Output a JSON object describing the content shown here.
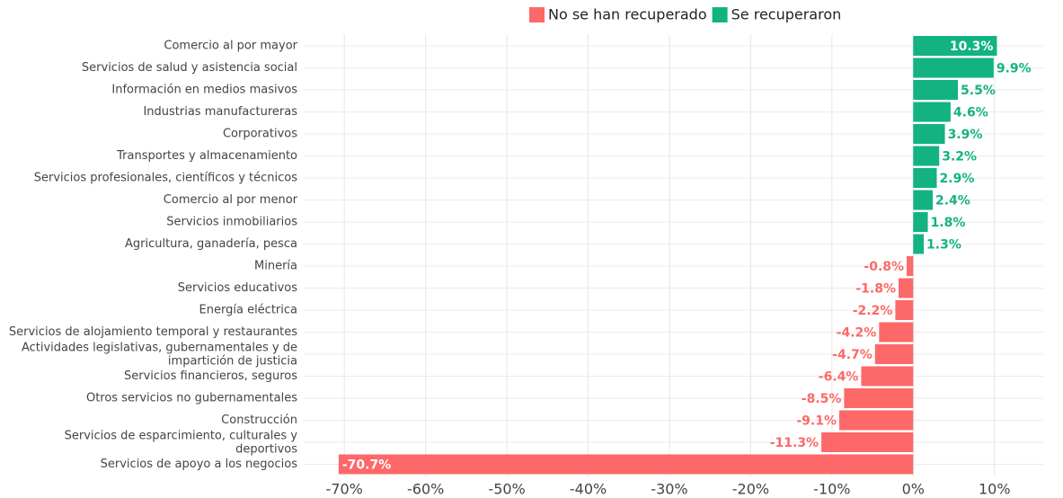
{
  "chart_data": {
    "type": "bar",
    "orientation": "horizontal",
    "categories": [
      "Comercio al por mayor",
      "Servicios de salud y asistencia social",
      "Información en medios masivos",
      "Industrias manufactureras",
      "Corporativos",
      "Transportes y almacenamiento",
      "Servicios profesionales, científicos y técnicos",
      "Comercio al por menor",
      "Servicios inmobiliarios",
      "Agricultura, ganadería, pesca",
      "Minería",
      "Servicios educativos",
      "Energía eléctrica",
      "Servicios de alojamiento temporal y restaurantes",
      "Actividades legislativas, gubernamentales y de\nimpartición de justicia",
      "Servicios financieros, seguros",
      "Otros servicios no gubernamentales",
      "Construcción",
      "Servicios de esparcimiento, culturales y\ndeportivos",
      "Servicios de apoyo a los negocios"
    ],
    "series": [
      {
        "name": "No se han recuperado",
        "color": "#fd6868",
        "values": [
          null,
          null,
          null,
          null,
          null,
          null,
          null,
          null,
          null,
          null,
          -0.8,
          -1.8,
          -2.2,
          -4.2,
          -4.7,
          -6.4,
          -8.5,
          -9.1,
          -11.3,
          -70.7
        ],
        "value_labels": [
          null,
          null,
          null,
          null,
          null,
          null,
          null,
          null,
          null,
          null,
          "-0.8%",
          "-1.8%",
          "-2.2%",
          "-4.2%",
          "-4.7%",
          "-6.4%",
          "-8.5%",
          "-9.1%",
          "-11.3%",
          "-70.7%"
        ]
      },
      {
        "name": "Se recuperaron",
        "color": "#12b381",
        "values": [
          10.3,
          9.9,
          5.5,
          4.6,
          3.9,
          3.2,
          2.9,
          2.4,
          1.8,
          1.3,
          null,
          null,
          null,
          null,
          null,
          null,
          null,
          null,
          null,
          null
        ],
        "value_labels": [
          "10.3%",
          "9.9%",
          "5.5%",
          "4.6%",
          "3.9%",
          "3.2%",
          "2.9%",
          "2.4%",
          "1.8%",
          "1.3%",
          null,
          null,
          null,
          null,
          null,
          null,
          null,
          null,
          null,
          null
        ]
      }
    ],
    "xlim": [
      -75,
      16
    ],
    "xticks": [
      {
        "value": -70,
        "label": "-70%"
      },
      {
        "value": -60,
        "label": "-60%"
      },
      {
        "value": -50,
        "label": "-50%"
      },
      {
        "value": -40,
        "label": "-40%"
      },
      {
        "value": -30,
        "label": "-30%"
      },
      {
        "value": -20,
        "label": "-20%"
      },
      {
        "value": -10,
        "label": "-10%"
      },
      {
        "value": 0,
        "label": "0%"
      },
      {
        "value": 10,
        "label": "10%"
      }
    ],
    "grid": true,
    "legend": "top"
  }
}
